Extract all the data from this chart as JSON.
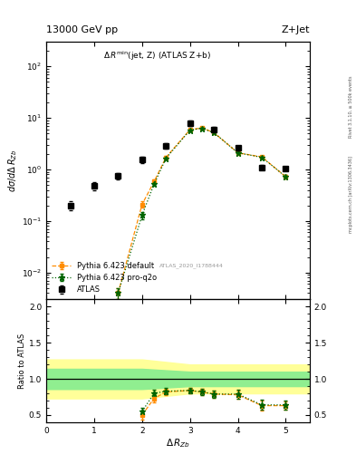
{
  "title_top": "13000 GeV pp",
  "title_right": "Z+Jet",
  "watermark": "ATLAS_2020_I1788444",
  "right_label1": "Rivet 3.1.10, ≥ 500k events",
  "right_label2": "mcplots.cern.ch [arXiv:1306.3436]",
  "atlas_x": [
    0.5,
    1.0,
    1.5,
    2.0,
    2.5,
    3.0,
    3.5,
    4.0,
    4.5,
    5.0
  ],
  "atlas_y": [
    0.2,
    0.48,
    0.75,
    1.55,
    2.85,
    8.0,
    6.0,
    2.6,
    1.1,
    1.05
  ],
  "atlas_yerr": [
    0.04,
    0.08,
    0.1,
    0.2,
    0.35,
    0.9,
    0.6,
    0.3,
    0.12,
    0.1
  ],
  "pd_x": [
    1.5,
    2.0,
    2.25,
    2.5,
    3.0,
    3.25,
    3.5,
    4.0,
    4.5,
    5.0
  ],
  "pd_y": [
    0.004,
    0.21,
    0.58,
    1.72,
    5.9,
    6.4,
    5.2,
    2.1,
    1.75,
    0.72
  ],
  "pd_yerr": [
    0.001,
    0.03,
    0.05,
    0.12,
    0.28,
    0.3,
    0.25,
    0.12,
    0.1,
    0.06
  ],
  "pp_x": [
    1.5,
    2.0,
    2.25,
    2.5,
    3.0,
    3.25,
    3.5,
    4.0,
    4.5,
    5.0
  ],
  "pp_y": [
    0.004,
    0.13,
    0.52,
    1.65,
    5.8,
    6.3,
    5.15,
    2.1,
    1.72,
    0.72
  ],
  "pp_yerr": [
    0.001,
    0.02,
    0.04,
    0.12,
    0.27,
    0.3,
    0.25,
    0.12,
    0.1,
    0.06
  ],
  "rd_x": [
    2.0,
    2.25,
    2.5,
    3.0,
    3.25,
    3.5,
    4.0,
    4.5,
    5.0
  ],
  "rd_y": [
    0.5,
    0.73,
    0.82,
    0.84,
    0.82,
    0.79,
    0.78,
    0.63,
    0.63
  ],
  "rd_yerr": [
    0.06,
    0.05,
    0.04,
    0.04,
    0.04,
    0.05,
    0.06,
    0.07,
    0.06
  ],
  "rp_x": [
    2.0,
    2.25,
    2.5,
    3.0,
    3.25,
    3.5,
    4.0,
    4.5,
    5.0
  ],
  "rp_y": [
    0.55,
    0.8,
    0.83,
    0.84,
    0.82,
    0.79,
    0.79,
    0.64,
    0.64
  ],
  "rp_yerr": [
    0.05,
    0.05,
    0.04,
    0.04,
    0.04,
    0.05,
    0.06,
    0.07,
    0.06
  ],
  "band_yellow_x": [
    0.0,
    2.0,
    2.0,
    3.0,
    3.0,
    5.5
  ],
  "band_yellow_lo": [
    0.73,
    0.73,
    0.73,
    0.8,
    0.8,
    0.8
  ],
  "band_yellow_hi": [
    1.27,
    1.27,
    1.27,
    1.2,
    1.2,
    1.2
  ],
  "band_green_x": [
    0.0,
    2.0,
    2.0,
    3.0,
    3.0,
    5.5
  ],
  "band_green_lo": [
    0.86,
    0.86,
    0.86,
    0.9,
    0.9,
    0.9
  ],
  "band_green_hi": [
    1.14,
    1.14,
    1.14,
    1.1,
    1.1,
    1.1
  ],
  "color_atlas": "#000000",
  "color_default": "#ff8c00",
  "color_proq2o": "#006400",
  "color_yellow": "#ffff99",
  "color_green": "#90ee90",
  "ylim_main": [
    0.003,
    300
  ],
  "ylim_ratio": [
    0.4,
    2.1
  ],
  "xlim": [
    0,
    5.5
  ]
}
